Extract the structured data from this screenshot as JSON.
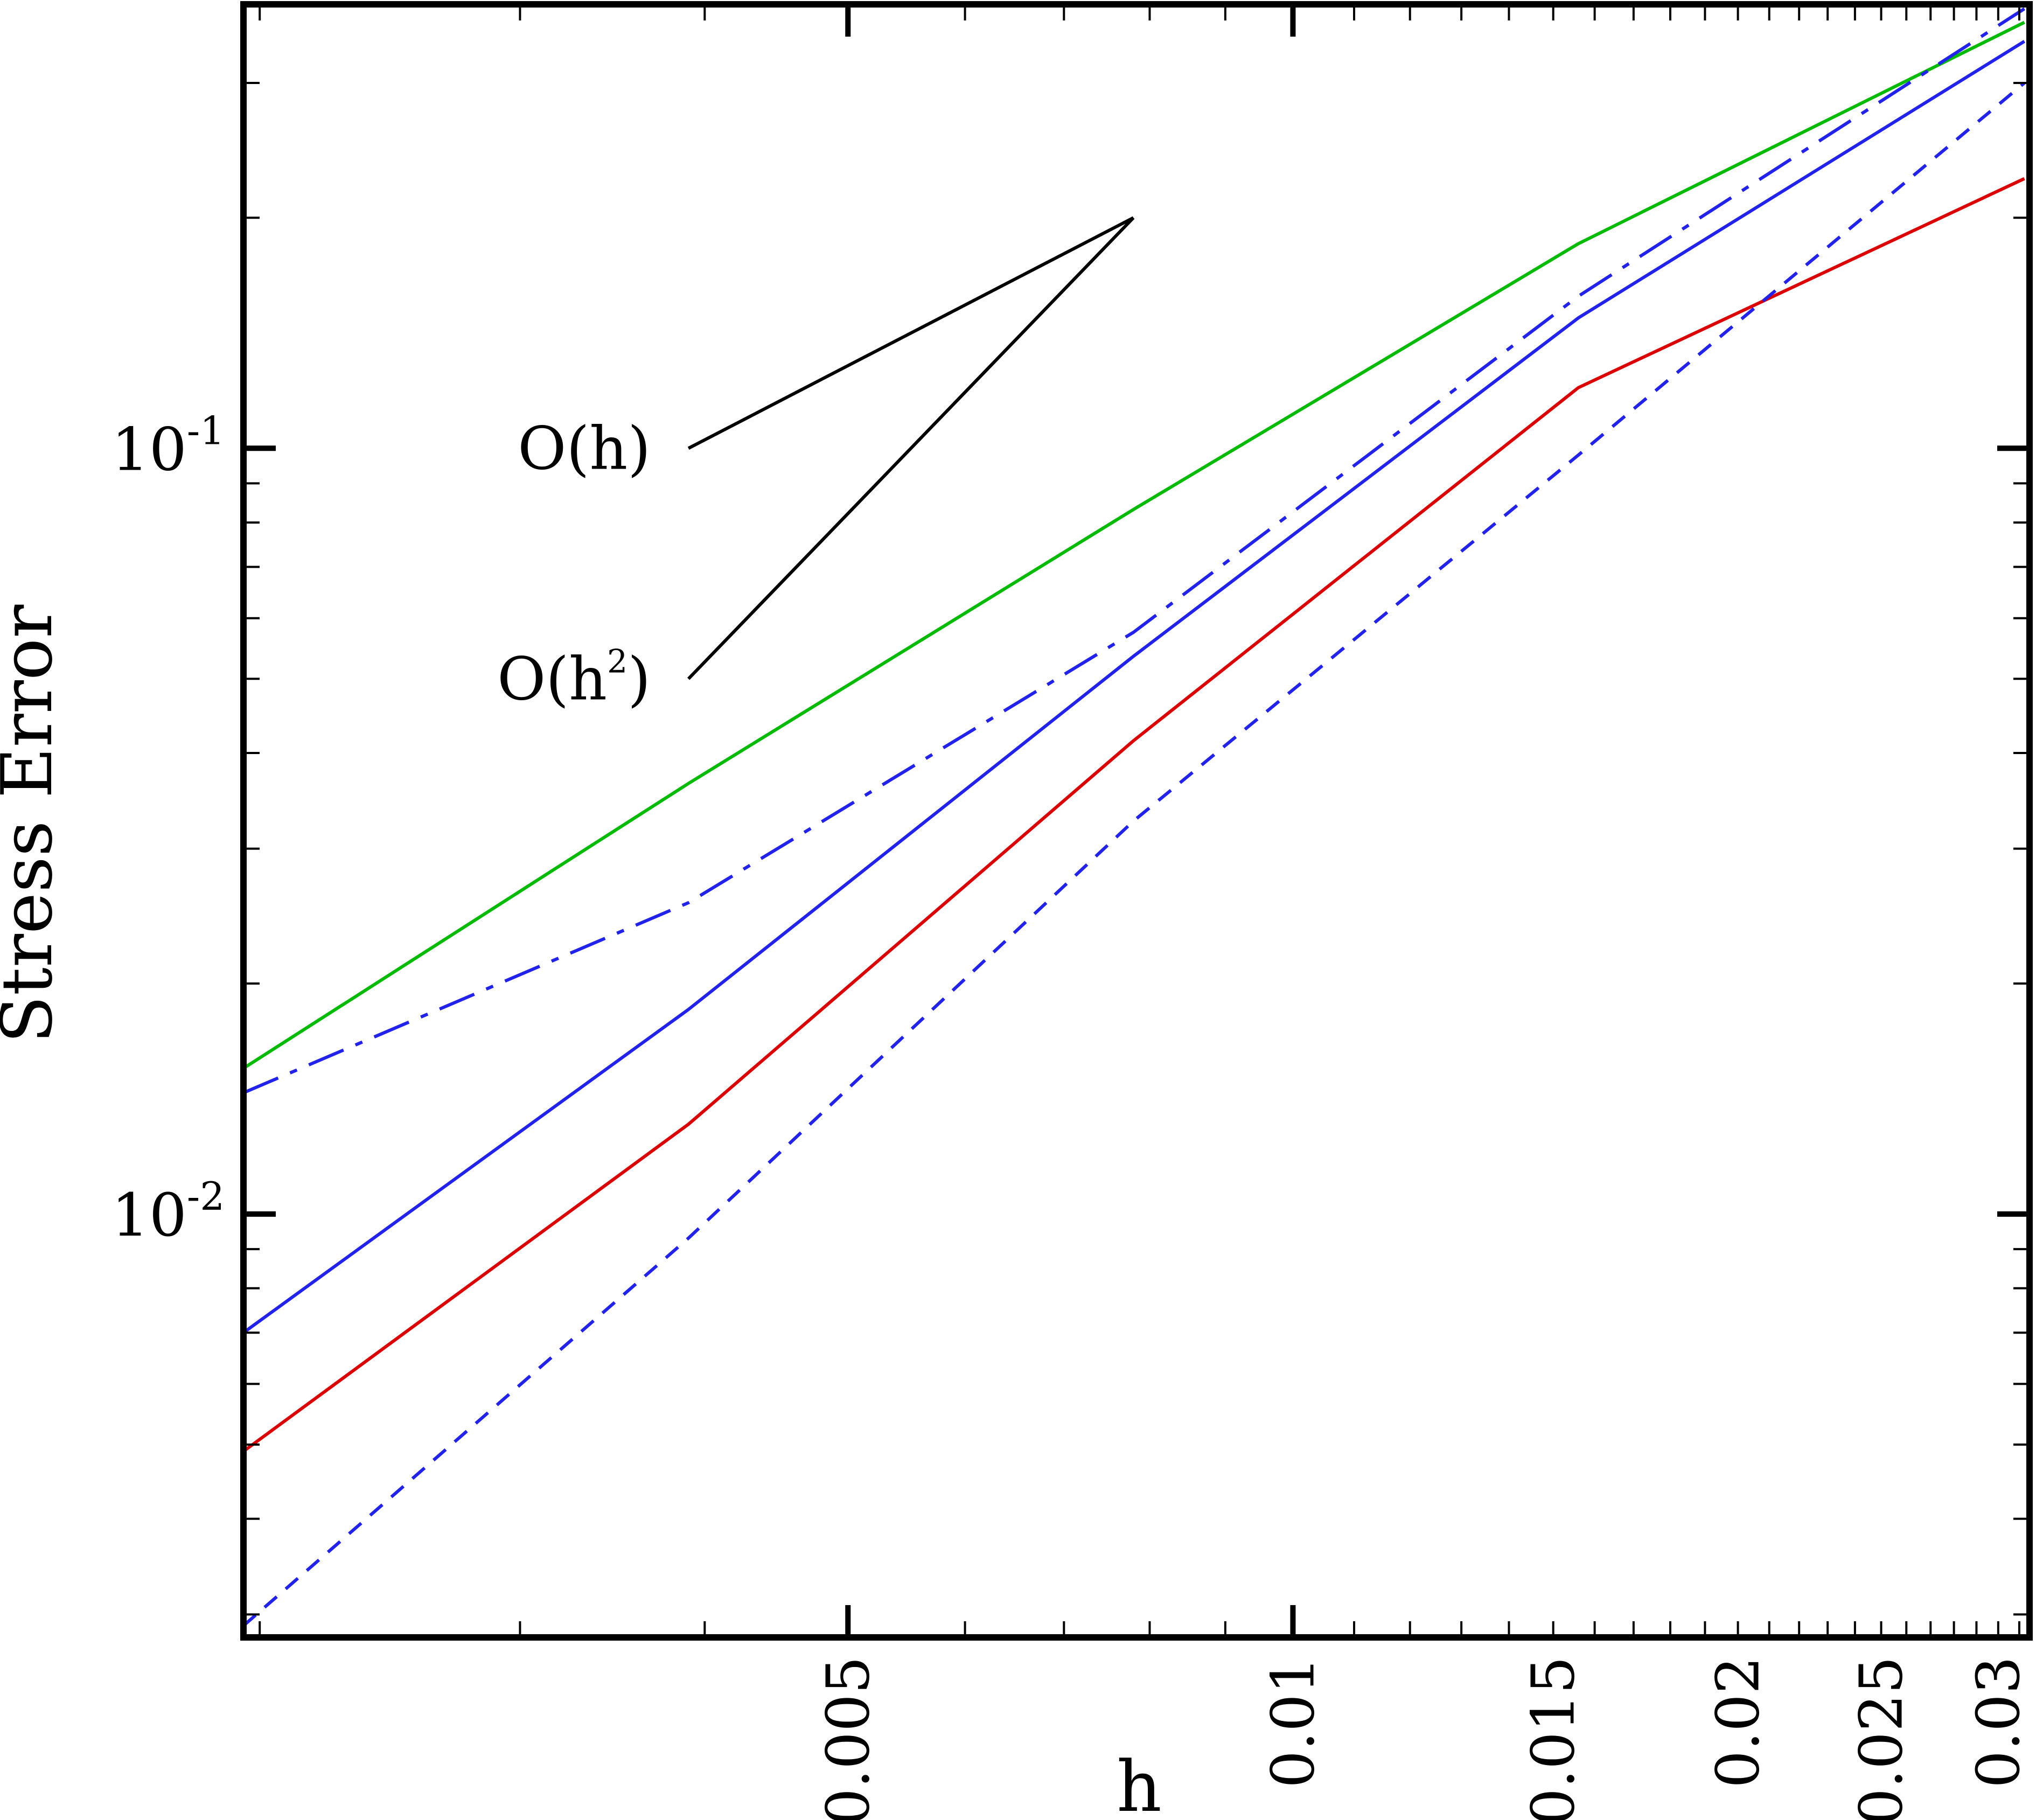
{
  "chart_data": {
    "type": "line",
    "title": "",
    "xlabel": "h",
    "ylabel": "Stress Error",
    "xscale": "log",
    "yscale": "log",
    "xlim": [
      0.00195,
      0.0315
    ],
    "ylim": [
      0.0028,
      0.38
    ],
    "grid": false,
    "legend": "none",
    "x_ticks": [
      {
        "value": 0.005,
        "label": "0.005"
      },
      {
        "value": 0.01,
        "label": "0.01"
      },
      {
        "value": 0.015,
        "label": "0.015"
      },
      {
        "value": 0.02,
        "label": "0.02"
      },
      {
        "value": 0.025,
        "label": "0.025"
      },
      {
        "value": 0.03,
        "label": "0.03"
      }
    ],
    "y_ticks": [
      {
        "value": 0.1,
        "base": "10",
        "exp": "-1"
      },
      {
        "value": 0.01,
        "base": "10",
        "exp": "-2"
      }
    ],
    "series": [
      {
        "color": "#00bb00",
        "dash": "solid",
        "x": [
          0.00195,
          0.0039,
          0.0078,
          0.0156,
          0.03125
        ],
        "y": [
          0.0155,
          0.0365,
          0.0832,
          0.185,
          0.36
        ]
      },
      {
        "color": "#2222ee",
        "dash": "dashdot",
        "x": [
          0.00195,
          0.0039,
          0.0078,
          0.0156,
          0.03125
        ],
        "y": [
          0.0144,
          0.0255,
          0.0575,
          0.158,
          0.375
        ]
      },
      {
        "color": "#2222ee",
        "dash": "solid",
        "x": [
          0.00195,
          0.0039,
          0.0078,
          0.0156,
          0.03125
        ],
        "y": [
          0.007,
          0.0185,
          0.0535,
          0.148,
          0.34
        ]
      },
      {
        "color": "#dd0000",
        "dash": "solid",
        "x": [
          0.00195,
          0.0039,
          0.0078,
          0.0156,
          0.03125
        ],
        "y": [
          0.0049,
          0.0131,
          0.0415,
          0.12,
          0.225
        ]
      },
      {
        "color": "#2222ee",
        "dash": "dashed",
        "x": [
          0.00195,
          0.0039,
          0.0078,
          0.0156,
          0.03125
        ],
        "y": [
          0.0029,
          0.0093,
          0.0326,
          0.098,
          0.3
        ]
      }
    ],
    "annotations": [
      {
        "text": "O(h)",
        "sup": "",
        "slope": 1,
        "x": [
          0.0039,
          0.0078
        ],
        "y": [
          0.1,
          0.2
        ]
      },
      {
        "text": "O(h",
        "sup": "2",
        "suffix": ")",
        "slope": 2,
        "x": [
          0.0039,
          0.0078
        ],
        "y": [
          0.05,
          0.2
        ]
      }
    ]
  }
}
